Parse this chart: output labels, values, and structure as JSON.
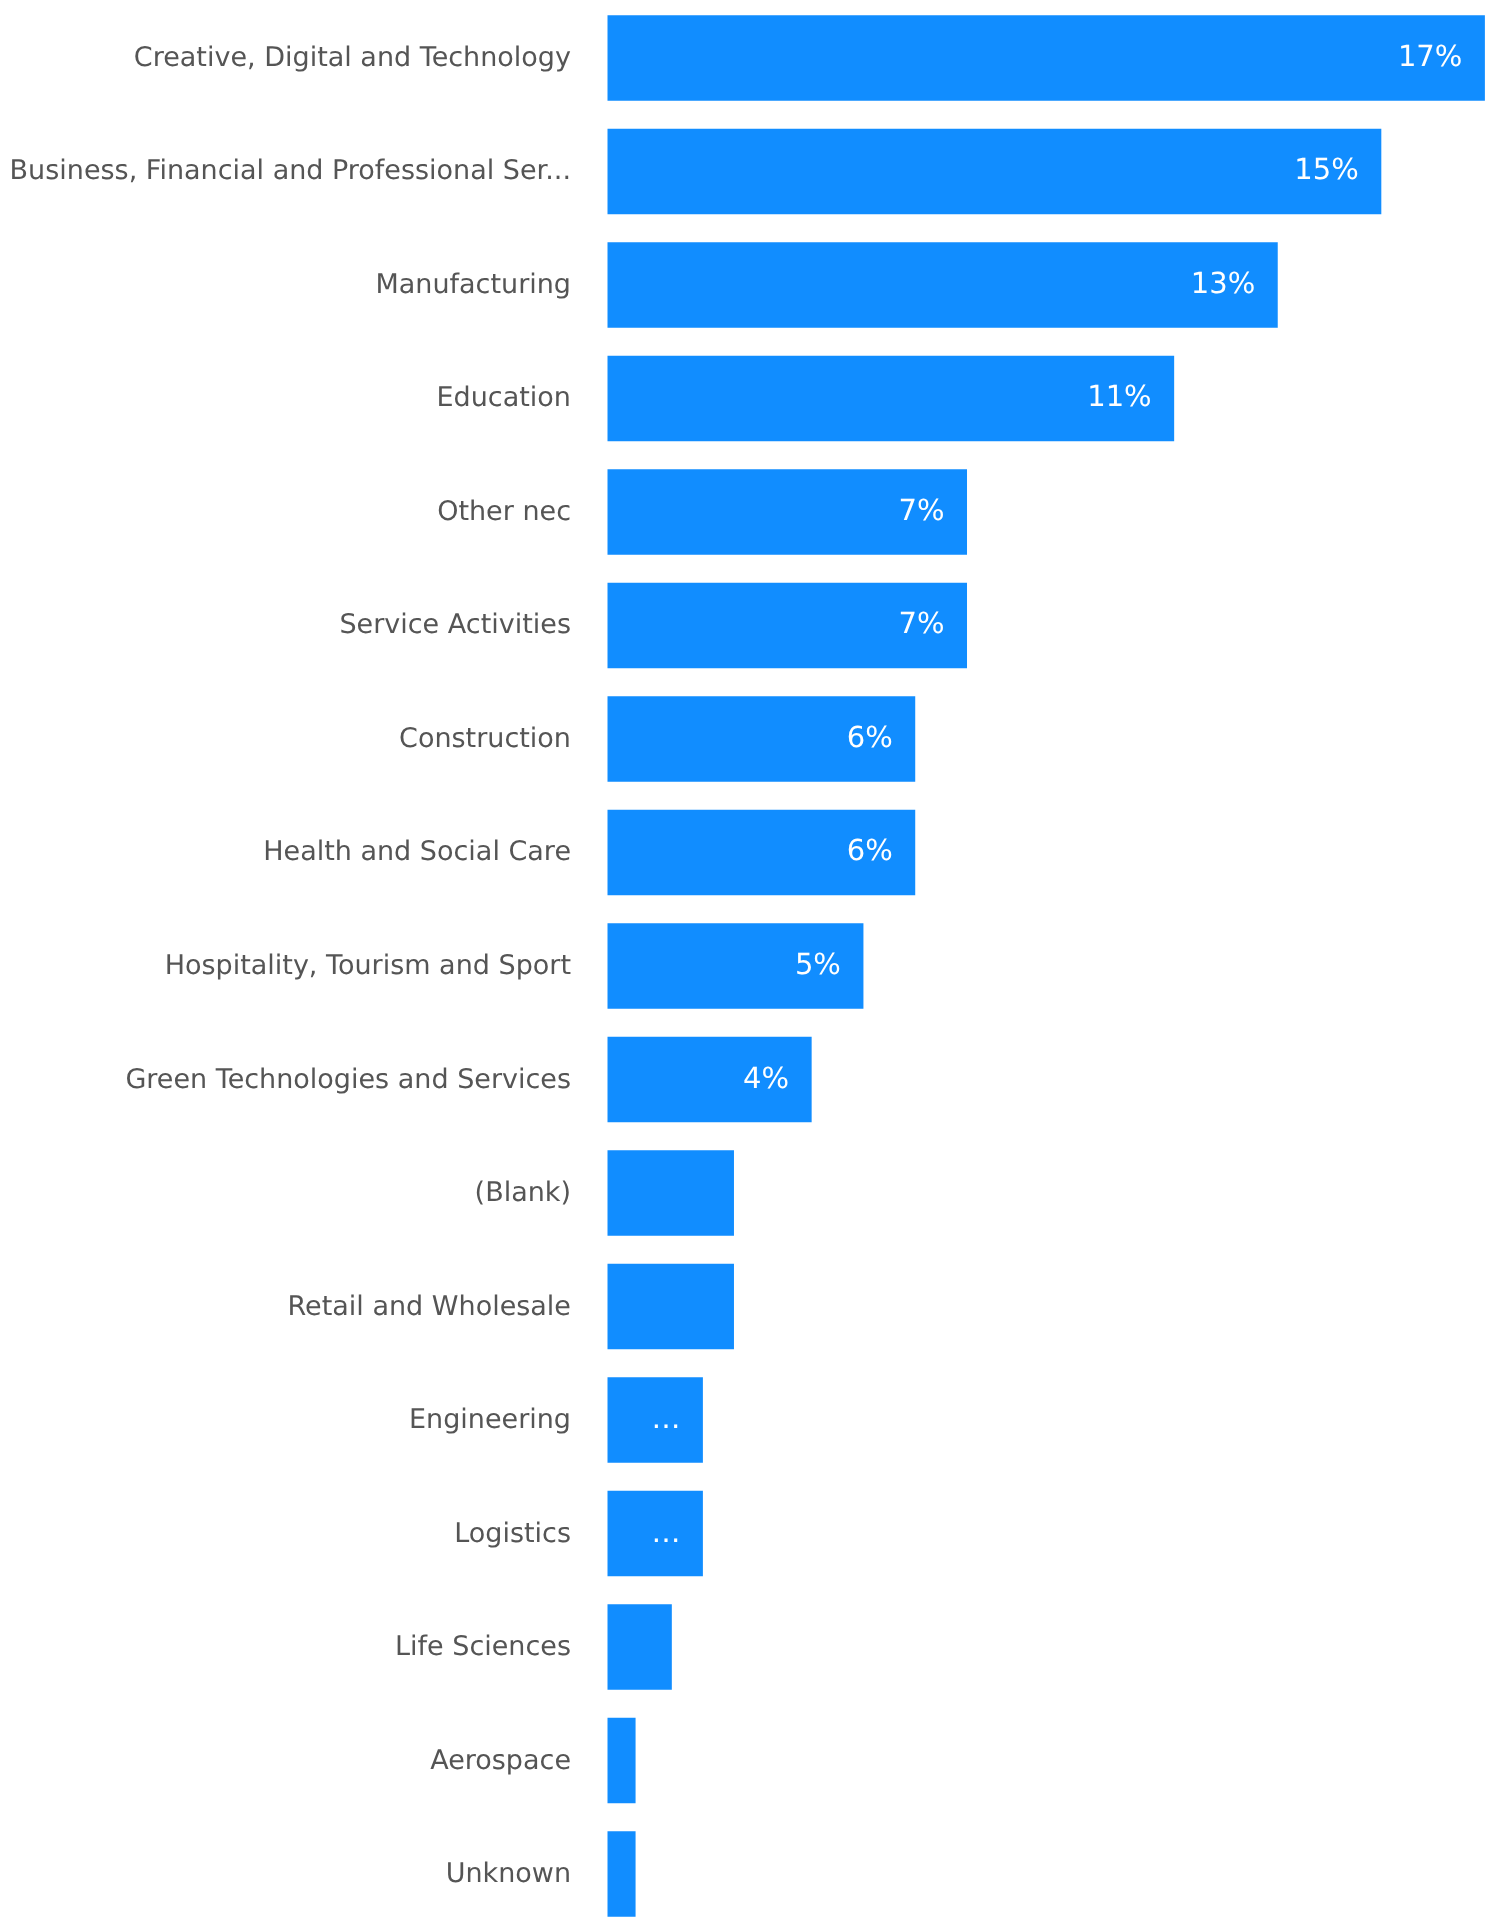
{
  "chart_data": {
    "type": "bar",
    "orientation": "horizontal",
    "categories": [
      "Creative, Digital and Technology",
      "Business, Financial and Professional Ser...",
      "Manufacturing",
      "Education",
      "Other nec",
      "Service Activities",
      "Construction",
      "Health and Social Care",
      "Hospitality, Tourism and Sport",
      "Green Technologies and Services",
      "(Blank)",
      "Retail and Wholesale",
      "Engineering",
      "Logistics",
      "Life Sciences",
      "Aerospace",
      "Unknown"
    ],
    "values": [
      17,
      15,
      13,
      11,
      7,
      7,
      6,
      6,
      5,
      4,
      2.5,
      2.5,
      1.9,
      1.9,
      1.3,
      0.6,
      0.6
    ],
    "value_labels": [
      "17%",
      "15%",
      "13%",
      "11%",
      "7%",
      "7%",
      "6%",
      "6%",
      "5%",
      "4%",
      null,
      null,
      "…",
      "…",
      null,
      null,
      null
    ],
    "color": "#118dff"
  }
}
